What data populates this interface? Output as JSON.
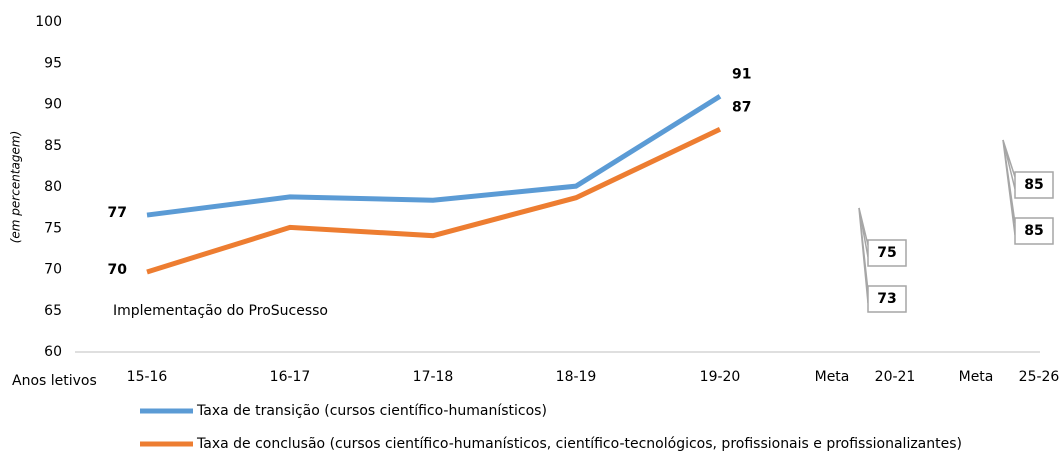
{
  "chart_data": {
    "type": "line",
    "y_axis_label": "(em percentagem)",
    "x_axis_label": "Anos letivos",
    "annotation": "Implementação do ProSucesso",
    "categories": [
      "15-16",
      "16-17",
      "17-18",
      "18-19",
      "19-20",
      "20-21",
      "25-26"
    ],
    "target_labels": [
      null,
      null,
      null,
      null,
      null,
      "Meta",
      "Meta"
    ],
    "ylim": [
      60,
      100
    ],
    "yticks": [
      60,
      65,
      70,
      75,
      80,
      85,
      90,
      95,
      100
    ],
    "series": [
      {
        "name": "Taxa de transição (cursos científico-humanísticos)",
        "color": "#5b9bd5",
        "label_color": "#2e75b6",
        "target_color": "#00b0f0",
        "values": [
          76.6,
          78.8,
          78.4,
          80.1,
          91,
          null,
          null
        ],
        "value_labels": [
          "77",
          null,
          null,
          null,
          "91",
          null,
          null
        ],
        "targets": [
          null,
          null,
          null,
          null,
          null,
          75,
          85
        ]
      },
      {
        "name": "Taxa de conclusão (cursos científico-humanísticos, científico-tecnológicos, profissionais e profissionalizantes)",
        "color": "#ed7d31",
        "label_color": "#c55a11",
        "target_color": "#c55a11",
        "values": [
          69.7,
          75.1,
          74.1,
          78.7,
          87,
          null,
          null
        ],
        "value_labels": [
          "70",
          null,
          null,
          null,
          "87",
          null,
          null
        ],
        "targets": [
          null,
          null,
          null,
          null,
          null,
          73,
          85
        ]
      }
    ]
  }
}
